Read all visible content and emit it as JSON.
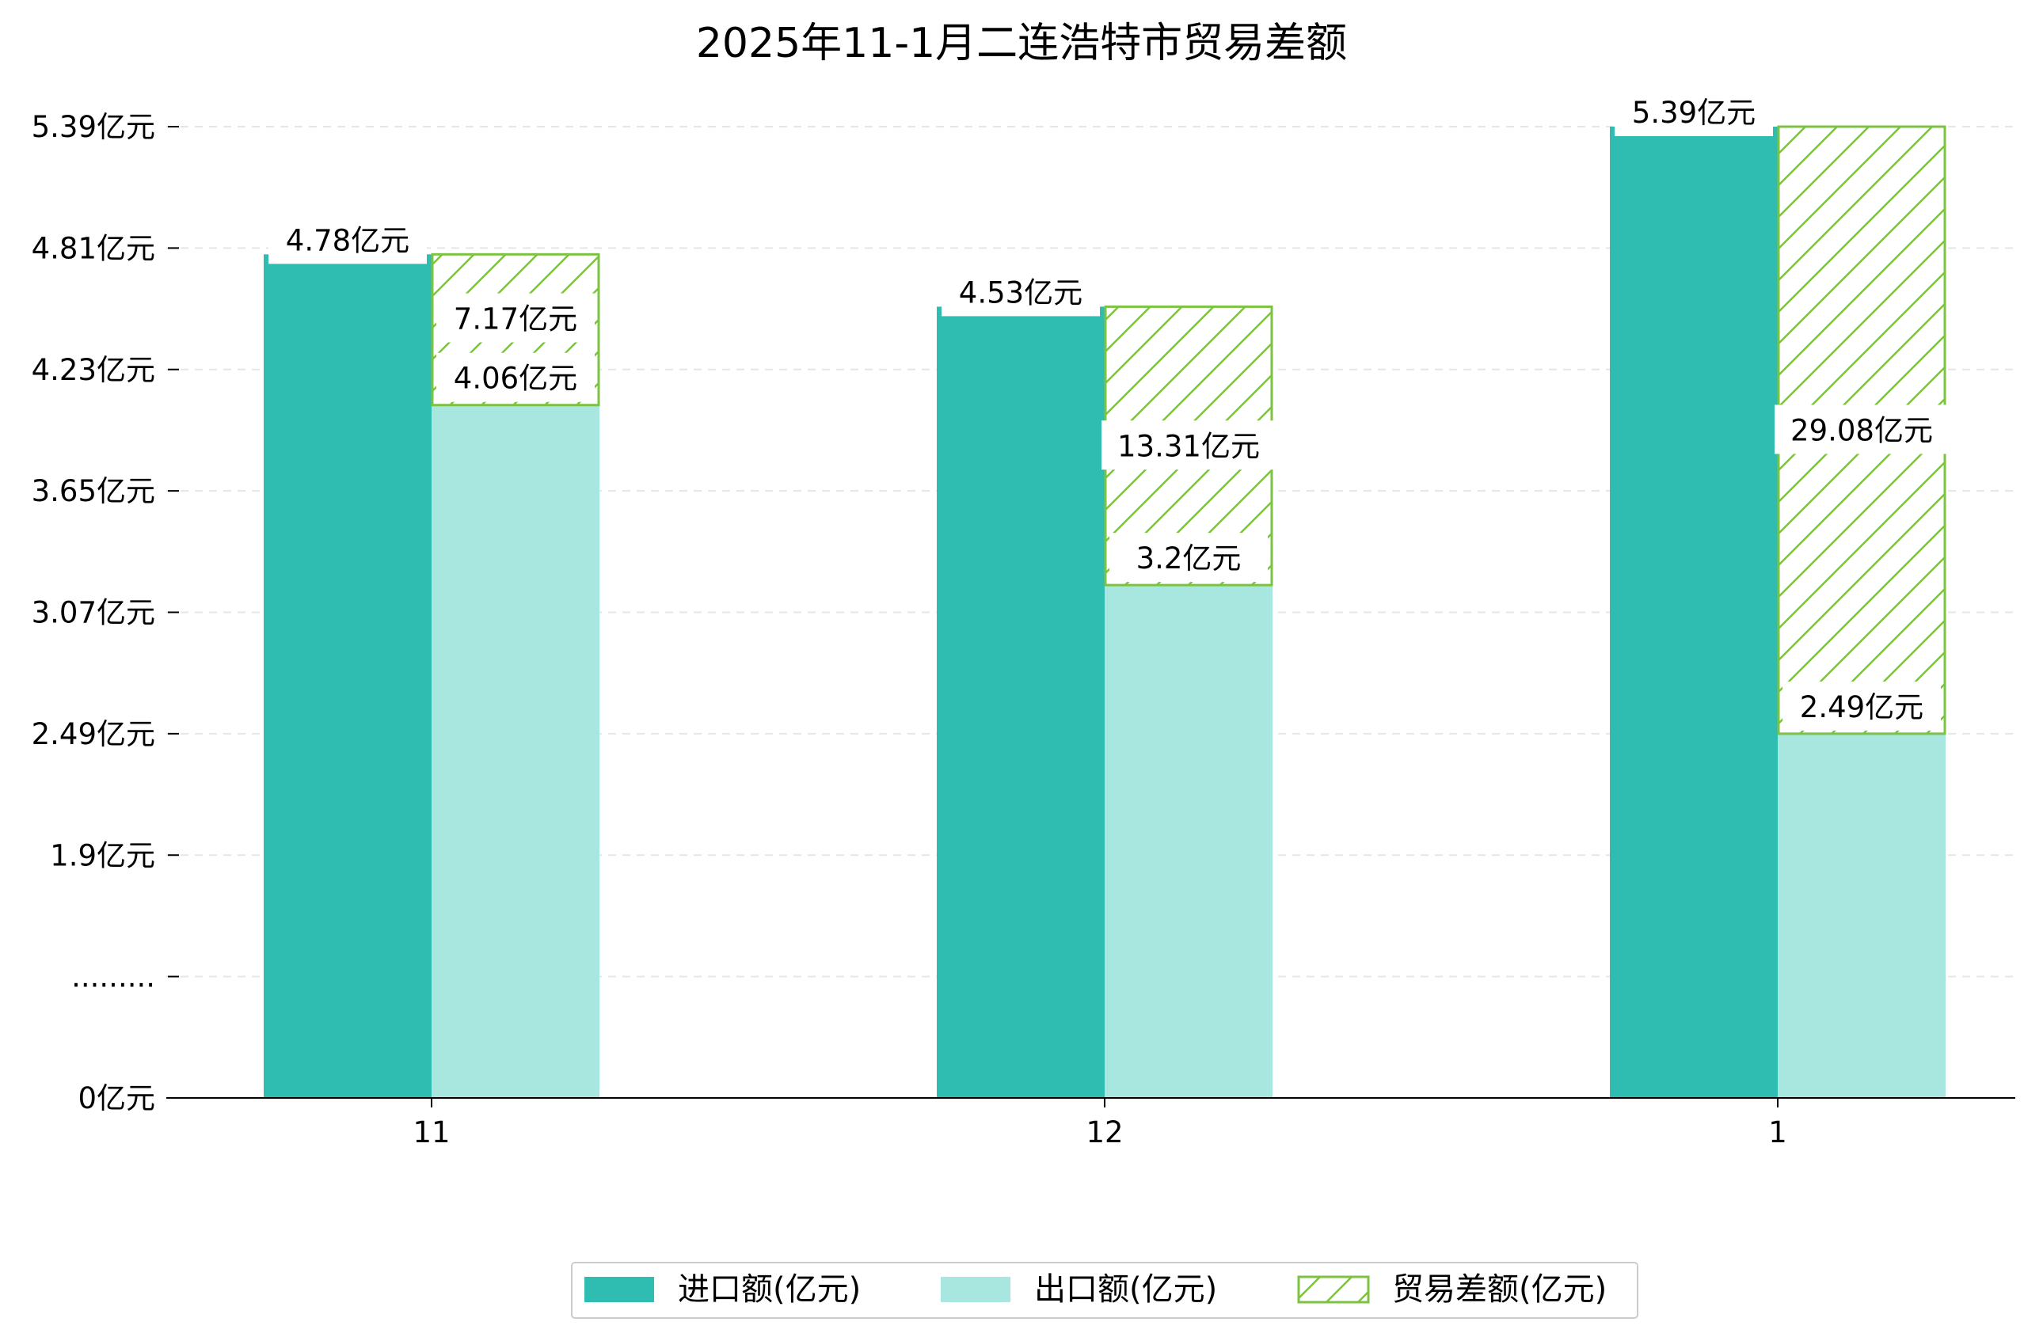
{
  "chart_data": {
    "type": "bar",
    "title": "2025年11-1月二连浩特市贸易差额",
    "categories": [
      "11",
      "12",
      "1"
    ],
    "series": [
      {
        "name": "进口额(亿元)",
        "values": [
          4.78,
          4.53,
          5.39
        ],
        "labels": [
          "4.78亿元",
          "4.53亿元",
          "5.39亿元"
        ],
        "color": "#2EBDB0"
      },
      {
        "name": "出口额(亿元)",
        "values": [
          4.06,
          3.2,
          2.49
        ],
        "labels": [
          "4.06亿元",
          "3.2亿元",
          "2.49亿元"
        ],
        "color": "#A8E6E0"
      },
      {
        "name": "贸易差额(亿元)",
        "values": [
          7.17,
          13.31,
          29.08
        ],
        "labels": [
          "7.17亿元",
          "13.31亿元",
          "29.08亿元"
        ],
        "color": "#7DC242",
        "hatch": true
      }
    ],
    "yticks": [
      "0亿元",
      ".........",
      "1.9亿元",
      "2.49亿元",
      "3.07亿元",
      "3.65亿元",
      "4.23亿元",
      "4.81亿元",
      "5.39亿元"
    ],
    "ytick_values": [
      0,
      0.8,
      1.9,
      2.49,
      3.07,
      3.65,
      4.23,
      4.81,
      5.39
    ],
    "grid": true,
    "legend_position": "bottom-center"
  }
}
